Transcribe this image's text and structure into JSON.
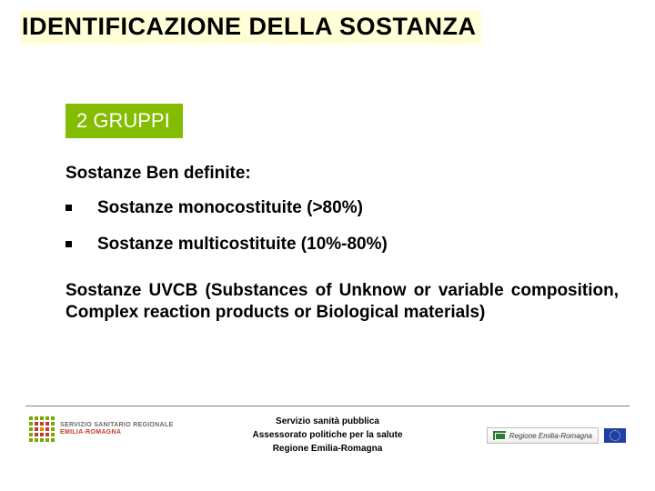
{
  "title": "IDENTIFICAZIONE DELLA SOSTANZA",
  "badge": "2 GRUPPI",
  "section1": {
    "heading": "Sostanze Ben definite:",
    "items": [
      "Sostanze monocostituite (>80%)",
      "Sostanze multicostituite (10%-80%)"
    ]
  },
  "section2": "Sostanze UVCB (Substances of Unknow or variable composition, Complex reaction products or Biological materials)",
  "footer": {
    "line1": "Servizio  sanità pubblica",
    "line2": "Assessorato politiche per la salute",
    "line3": "Regione Emilia-Romagna"
  },
  "logos": {
    "ssr_line1": "SERVIZIO SANITARIO REGIONALE",
    "ssr_line2": "EMILIA-ROMAGNA",
    "rer": "Regione Emilia-Romagna"
  },
  "colors": {
    "title_highlight": "#fffed6",
    "badge_bg": "#84bc00",
    "badge_fg": "#ffffff",
    "text": "#000000",
    "rule": "#808080"
  }
}
